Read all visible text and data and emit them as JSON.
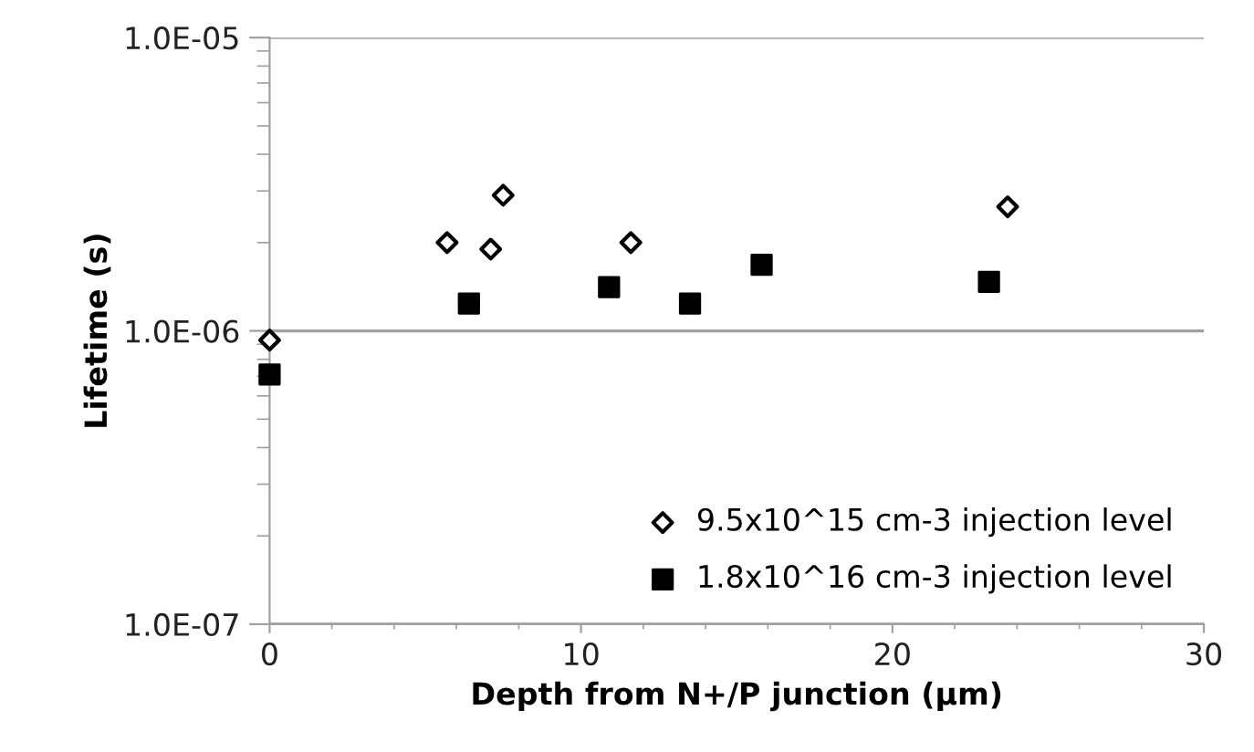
{
  "chart_data": {
    "type": "scatter",
    "xlabel": "Depth from N+/P junction (µm)",
    "ylabel": "Lifetime (s)",
    "log": "y",
    "xlim": [
      0,
      30
    ],
    "xticks": [
      0,
      10,
      20,
      30
    ],
    "ylim": [
      1e-07,
      1e-05
    ],
    "yticks": [
      {
        "value": 1e-07,
        "label": "1.0E-07"
      },
      {
        "value": 1e-06,
        "label": "1.0E-06"
      },
      {
        "value": 1e-05,
        "label": "1.0E-05"
      }
    ],
    "grid": "y",
    "legend": "bottom right",
    "series": [
      {
        "name": "9.5x10^15 cm-3 injection level",
        "color": "#000000",
        "marker": "diamond",
        "x": [
          0,
          5.7,
          7.1,
          7.5,
          11.6,
          23.7
        ],
        "values": [
          9.3e-07,
          2e-06,
          1.9e-06,
          2.9e-06,
          2e-06,
          2.65e-06
        ]
      },
      {
        "name": "1.8x10^16 cm-3 injection level",
        "color": "#000000",
        "marker": "square",
        "x": [
          0,
          6.4,
          10.9,
          13.5,
          15.8,
          23.1
        ],
        "values": [
          7.1e-07,
          1.24e-06,
          1.41e-06,
          1.24e-06,
          1.68e-06,
          1.47e-06
        ]
      }
    ]
  }
}
